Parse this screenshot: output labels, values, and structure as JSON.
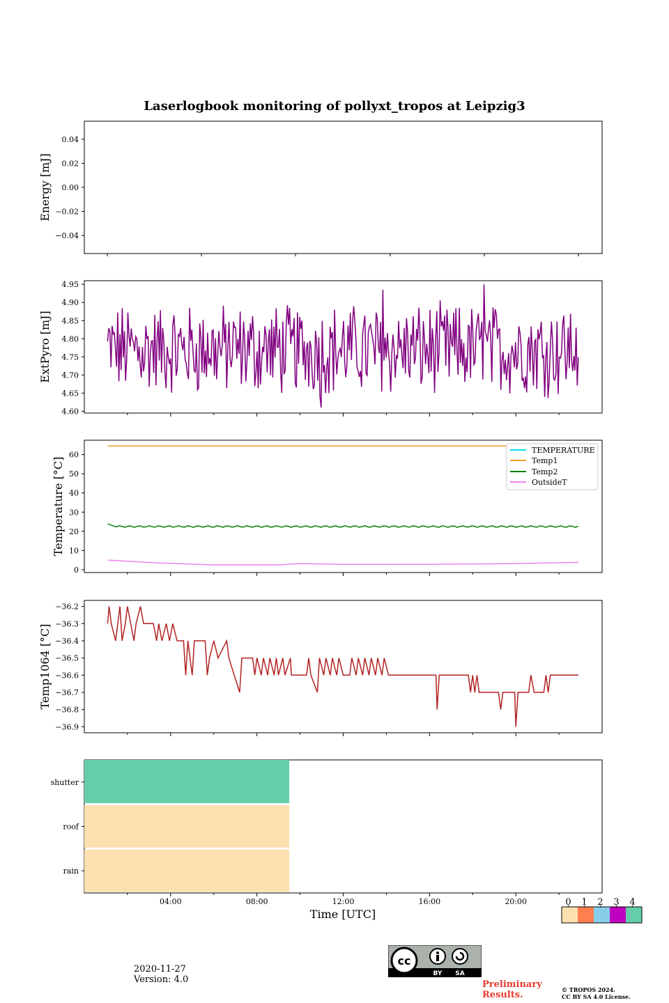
{
  "chart_data": {
    "type": "multi-panel time series",
    "title": "Laserlogbook monitoring of pollyxt_tropos at Leipzig3",
    "xlabel": "Time [UTC]",
    "xlim_hours": [
      0,
      24
    ],
    "x_tick_labels": [
      "04:00",
      "08:00",
      "12:00",
      "16:00",
      "20:00"
    ],
    "panels": [
      {
        "id": "energy",
        "ylabel": "Energy [mJ]",
        "ylim": [
          -0.055,
          0.055
        ],
        "yticks": [
          0.04,
          0.02,
          0.0
        ],
        "ytick_labels": [
          "0.04",
          "0.02",
          "0.00",
          "−0.02",
          "−0.04"
        ],
        "yticks_all": [
          0.04,
          0.02,
          0.0,
          -0.02,
          -0.04
        ],
        "series": []
      },
      {
        "id": "extpyro",
        "ylabel": "ExtPyro [mJ]",
        "ylim": [
          4.595,
          4.96
        ],
        "yticks_all": [
          4.95,
          4.9,
          4.85,
          4.8,
          4.75,
          4.7,
          4.65,
          4.6
        ],
        "ytick_labels": [
          "4.95",
          "4.90",
          "4.85",
          "4.80",
          "4.75",
          "4.70",
          "4.65",
          "4.60"
        ],
        "series": [
          {
            "name": "ExtPyro",
            "color": "#800080",
            "t_start": 1.08,
            "t_end": 22.9,
            "mean": 4.77,
            "min": 4.61,
            "max": 4.95,
            "n_points": 420
          }
        ]
      },
      {
        "id": "temperature",
        "ylabel": "Temperature [°C]",
        "ylim": [
          -1.5,
          67.5
        ],
        "yticks_all": [
          60,
          50,
          40,
          30,
          20,
          10,
          0
        ],
        "ytick_labels": [
          "60",
          "50",
          "40",
          "30",
          "20",
          "10",
          "0"
        ],
        "legend_position": "top-right",
        "series": [
          {
            "name": "TEMPERATURE",
            "color": "#00e5ee",
            "values_note": "no data"
          },
          {
            "name": "Temp1",
            "color": "#f0a020",
            "t": [
              1.08,
              22.9
            ],
            "values": [
              64.5,
              64.5
            ]
          },
          {
            "name": "Temp2",
            "color": "#008000",
            "t_start": 1.08,
            "t_end": 22.9,
            "mean": 22.5,
            "start_value": 23.8,
            "amplitude": 0.7
          },
          {
            "name": "OutsideT",
            "color": "#ee82ee",
            "t": [
              1.08,
              3.5,
              6.0,
              9.0,
              10.0,
              12.0,
              16.0,
              20.0,
              22.9
            ],
            "values": [
              5.0,
              3.5,
              2.5,
              2.5,
              3.2,
              2.7,
              2.8,
              3.2,
              3.8
            ]
          }
        ]
      },
      {
        "id": "temp1064",
        "ylabel": "Temp1064 [°C]",
        "ylim": [
          -36.935,
          -36.165
        ],
        "yticks_all": [
          -36.2,
          -36.3,
          -36.4,
          -36.5,
          -36.6,
          -36.7,
          -36.8,
          -36.9
        ],
        "ytick_labels": [
          "−36.2",
          "−36.3",
          "−36.4",
          "−36.5",
          "−36.6",
          "−36.7",
          "−36.8",
          "−36.9"
        ],
        "series": [
          {
            "name": "Temp1064",
            "color": "#b22222",
            "t_start": 1.08,
            "t_end": 22.9,
            "min": -36.9,
            "max": -36.2
          }
        ]
      },
      {
        "id": "status",
        "categories": [
          "shutter",
          "roof",
          "rain"
        ],
        "t_end_hours": 9.5,
        "status_values": {
          "shutter": 4,
          "roof": 0,
          "rain": 0
        }
      }
    ],
    "colorbar": {
      "tick_labels": [
        "0",
        "1",
        "2",
        "3",
        "4"
      ],
      "colors": [
        "#fde0af",
        "#ff7f50",
        "#87ceeb",
        "#c000c0",
        "#66cdaa"
      ]
    }
  },
  "footer": {
    "date": "2020-11-27",
    "version": "Version: 4.0",
    "prelim_line1": "Preliminary",
    "prelim_line2": "Results.",
    "copyright_line1": "© TROPOS 2024.",
    "copyright_line2": "CC BY SA 4.0 License."
  },
  "cc_badge": {
    "by": "BY",
    "sa": "SA",
    "cc": "cc"
  }
}
